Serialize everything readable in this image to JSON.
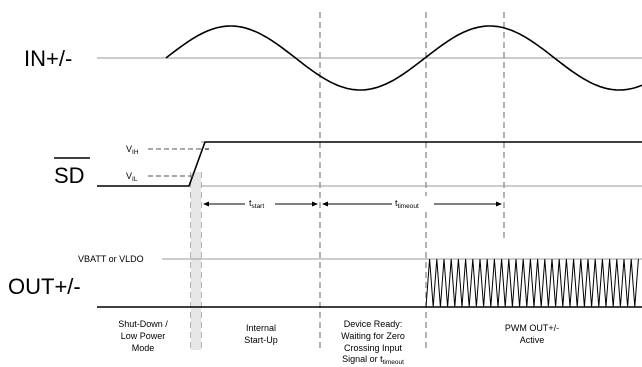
{
  "signals": {
    "in": "IN+/-",
    "sd": "SD",
    "out": "OUT+/-"
  },
  "levels": {
    "vih_main": "V",
    "vih_sub": "IH",
    "vil_main": "V",
    "vil_sub": "IL",
    "vbatt": "VBATT or VLDO"
  },
  "timing": {
    "tstart_main": "t",
    "tstart_sub": "start",
    "ttimeout_main": "t",
    "ttimeout_sub": "timeout"
  },
  "phases": {
    "p1_l1": "Shut-Down /",
    "p1_l2": "Low Power",
    "p1_l3": "Mode",
    "p2_l1": "Internal",
    "p2_l2": "Start-Up",
    "p3_l1": "Device Ready:",
    "p3_l2": "Waiting for Zero",
    "p3_l3": "Crossing Input",
    "p3_l4_main": "Signal or t",
    "p3_l4_sub": "timeout",
    "p4_l1": "PWM OUT+/-",
    "p4_l2": "Active"
  }
}
